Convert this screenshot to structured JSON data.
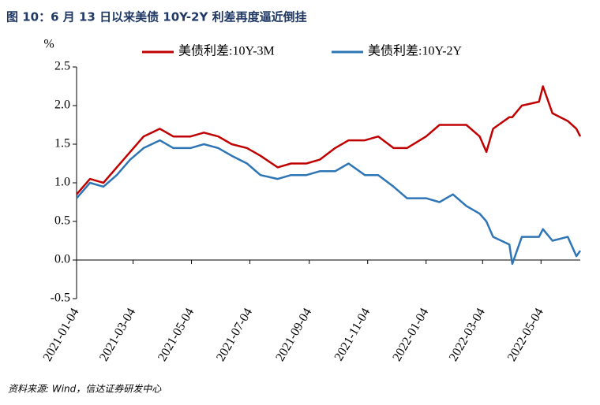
{
  "chart_data": {
    "type": "line",
    "title": "图 10：6 月 13 日以来美债 10Y-2Y 利差再度逼近倒挂",
    "y_label": "%",
    "source": "资料来源: Wind，信达证券研发中心",
    "x": [
      "2021-01-04",
      "2021-01-18",
      "2021-02-01",
      "2021-02-15",
      "2021-03-01",
      "2021-03-15",
      "2021-04-01",
      "2021-04-15",
      "2021-05-03",
      "2021-05-17",
      "2021-06-01",
      "2021-06-15",
      "2021-07-01",
      "2021-07-15",
      "2021-08-02",
      "2021-08-16",
      "2021-09-01",
      "2021-09-15",
      "2021-10-01",
      "2021-10-15",
      "2021-11-01",
      "2021-11-15",
      "2021-12-01",
      "2021-12-15",
      "2022-01-04",
      "2022-01-18",
      "2022-02-01",
      "2022-02-15",
      "2022-03-01",
      "2022-03-08",
      "2022-03-15",
      "2022-04-01",
      "2022-04-04",
      "2022-04-14",
      "2022-05-02",
      "2022-05-06",
      "2022-05-16",
      "2022-06-01",
      "2022-06-10",
      "2022-06-14"
    ],
    "series": [
      {
        "name": "美债利差:10Y-3M",
        "color": "#c00000",
        "values": [
          0.85,
          1.05,
          1.0,
          1.2,
          1.4,
          1.6,
          1.7,
          1.6,
          1.6,
          1.65,
          1.6,
          1.5,
          1.45,
          1.35,
          1.2,
          1.25,
          1.25,
          1.3,
          1.45,
          1.55,
          1.55,
          1.6,
          1.45,
          1.45,
          1.6,
          1.75,
          1.75,
          1.75,
          1.6,
          1.4,
          1.7,
          1.85,
          1.85,
          2.0,
          2.05,
          2.25,
          1.9,
          1.8,
          1.7,
          1.6
        ]
      },
      {
        "name": "美债利差:10Y-2Y",
        "color": "#2e75b6",
        "values": [
          0.8,
          1.0,
          0.95,
          1.1,
          1.3,
          1.45,
          1.55,
          1.45,
          1.45,
          1.5,
          1.45,
          1.35,
          1.25,
          1.1,
          1.05,
          1.1,
          1.1,
          1.15,
          1.15,
          1.25,
          1.1,
          1.1,
          0.95,
          0.8,
          0.8,
          0.75,
          0.85,
          0.7,
          0.6,
          0.5,
          0.3,
          0.2,
          -0.05,
          0.3,
          0.3,
          0.4,
          0.25,
          0.3,
          0.05,
          0.12
        ]
      }
    ],
    "xlim": [
      "2021-01-04",
      "2022-06-14"
    ],
    "xticks": [
      "2021-01-04",
      "2021-03-04",
      "2021-05-04",
      "2021-07-04",
      "2021-09-04",
      "2021-11-04",
      "2022-01-04",
      "2022-03-04",
      "2022-05-04"
    ],
    "ylim": [
      -0.5,
      2.5
    ],
    "yticks": [
      {
        "value": -0.5,
        "label": "-0.5"
      },
      {
        "value": 0,
        "label": "0.0"
      },
      0.5,
      {
        "value": 1,
        "label": "1.0"
      },
      1.5,
      {
        "value": 2,
        "label": "2.0"
      },
      2.5
    ],
    "legend": "top"
  }
}
